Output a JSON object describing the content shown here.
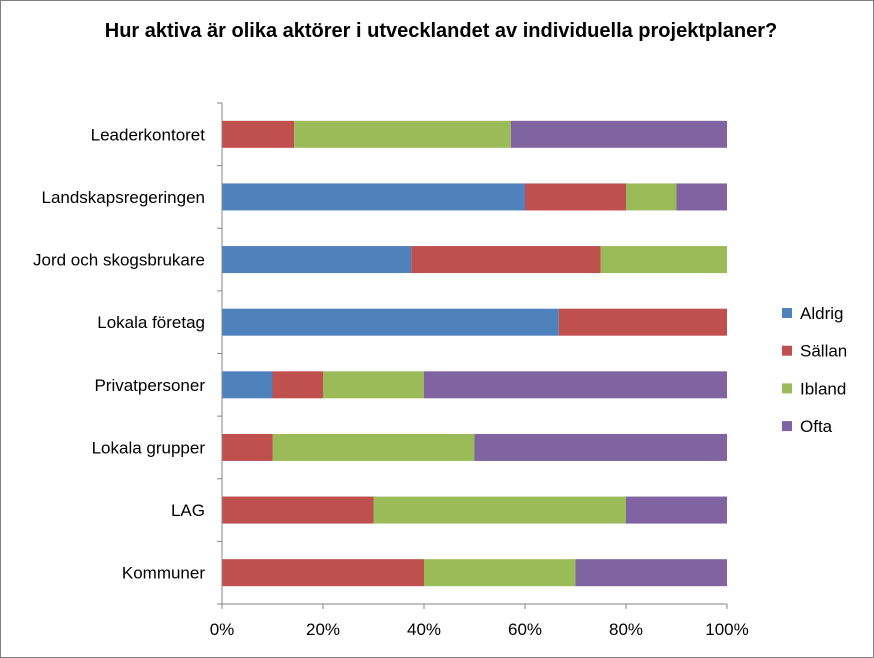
{
  "chart_data": {
    "type": "bar",
    "orientation": "horizontal",
    "stacked": "percent",
    "title": "Hur aktiva är olika aktörer i utvecklandet av individuella projektplaner?",
    "categories": [
      "Leaderkontoret",
      "Landskapsregeringen",
      "Jord och skogsbrukare",
      "Lokala företag",
      "Privatpersoner",
      "Lokala grupper",
      "LAG",
      "Kommuner"
    ],
    "series": [
      {
        "name": "Aldrig",
        "color": "#4f81bd",
        "values": [
          0,
          60,
          37.5,
          66.7,
          10,
          0,
          0,
          0
        ]
      },
      {
        "name": "Sällan",
        "color": "#c0504d",
        "values": [
          14.3,
          20,
          37.5,
          33.3,
          10,
          10,
          30,
          40
        ]
      },
      {
        "name": "Ibland",
        "color": "#9bbb59",
        "values": [
          42.9,
          10,
          25,
          0,
          20,
          40,
          50,
          30
        ]
      },
      {
        "name": "Ofta",
        "color": "#8064a2",
        "values": [
          42.8,
          10,
          0,
          0,
          60,
          50,
          20,
          30
        ]
      }
    ],
    "xlim": [
      0,
      100
    ],
    "xticks": [
      "0%",
      "20%",
      "40%",
      "60%",
      "80%",
      "100%"
    ],
    "legend_position": "right",
    "grid": false
  }
}
